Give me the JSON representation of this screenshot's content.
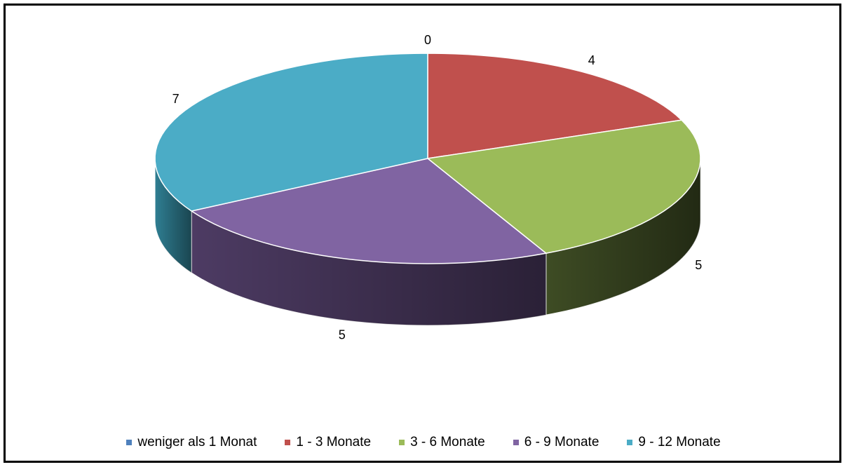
{
  "chart_data": {
    "type": "pie",
    "style": "3d",
    "categories": [
      "weniger als 1 Monat",
      "1 - 3 Monate",
      "3 - 6 Monate",
      "6 - 9 Monate",
      "9 - 12 Monate"
    ],
    "values": [
      0,
      4,
      5,
      5,
      7
    ],
    "data_labels": [
      "0",
      "4",
      "5",
      "5",
      "7"
    ],
    "colors": [
      "#4F81BD",
      "#C0504D",
      "#9BBB59",
      "#8064A2",
      "#4BACC6"
    ],
    "side_colors": [
      "#2C4D75",
      "#772C2A",
      "#3E4C24",
      "#4D3B63",
      "#2F7E92"
    ],
    "legend_position": "bottom"
  },
  "legend": {
    "items": [
      {
        "label": "weniger als 1 Monat",
        "color": "#4F81BD"
      },
      {
        "label": "1 - 3 Monate",
        "color": "#C0504D"
      },
      {
        "label": "3 - 6 Monate",
        "color": "#9BBB59"
      },
      {
        "label": "6 - 9 Monate",
        "color": "#8064A2"
      },
      {
        "label": "9 - 12 Monate",
        "color": "#4BACC6"
      }
    ]
  }
}
